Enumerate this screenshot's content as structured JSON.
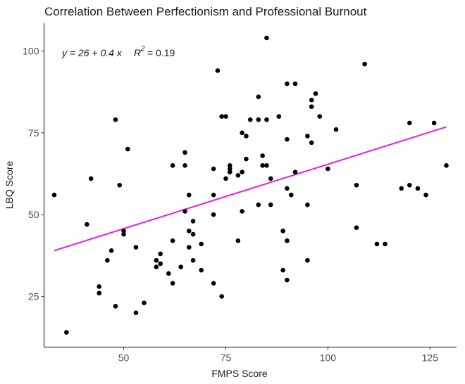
{
  "chart_data": {
    "type": "scatter",
    "title": "Correlation Between Perfectionism and Professional Burnout",
    "xlabel": "FMPS Score",
    "ylabel": "LBQ Score",
    "xlim": [
      30.5,
      131.5
    ],
    "ylim": [
      9.5,
      108.5
    ],
    "xticks": [
      50,
      75,
      100,
      125
    ],
    "yticks": [
      25,
      50,
      75,
      100
    ],
    "grid": false,
    "legend": "none",
    "annotation": {
      "equation": "y = 26 + 0.4 x",
      "r_symbol": "R",
      "r_superscript": "2",
      "r_value": "= 0.19"
    },
    "point_color": "#000000",
    "fit_color": "#e81ee0",
    "fit_line": {
      "x": [
        33,
        129
      ],
      "y": [
        39.0,
        76.8
      ]
    },
    "points": [
      [
        33,
        56
      ],
      [
        36,
        14
      ],
      [
        41,
        47
      ],
      [
        42,
        61
      ],
      [
        44,
        28
      ],
      [
        44,
        26
      ],
      [
        46,
        36
      ],
      [
        47,
        39
      ],
      [
        48,
        79
      ],
      [
        48,
        22
      ],
      [
        49,
        59
      ],
      [
        50,
        45
      ],
      [
        50,
        44
      ],
      [
        51,
        70
      ],
      [
        53,
        40
      ],
      [
        53,
        20
      ],
      [
        55,
        23
      ],
      [
        58,
        36
      ],
      [
        58,
        34
      ],
      [
        59,
        38
      ],
      [
        59,
        35
      ],
      [
        61,
        32
      ],
      [
        62,
        65
      ],
      [
        62,
        42
      ],
      [
        62,
        29
      ],
      [
        64,
        34
      ],
      [
        65,
        69
      ],
      [
        65,
        65
      ],
      [
        65,
        51
      ],
      [
        66,
        56
      ],
      [
        66,
        45
      ],
      [
        66,
        40
      ],
      [
        67,
        48
      ],
      [
        67,
        44
      ],
      [
        67,
        36
      ],
      [
        69,
        41
      ],
      [
        69,
        33
      ],
      [
        72,
        64
      ],
      [
        72,
        56
      ],
      [
        72,
        50
      ],
      [
        72,
        29
      ],
      [
        73,
        94
      ],
      [
        74,
        80
      ],
      [
        74,
        25
      ],
      [
        75,
        80
      ],
      [
        75,
        61
      ],
      [
        76,
        65
      ],
      [
        76,
        64
      ],
      [
        76,
        63
      ],
      [
        78,
        62
      ],
      [
        78,
        42
      ],
      [
        79,
        75
      ],
      [
        79,
        63
      ],
      [
        79,
        51
      ],
      [
        80,
        74
      ],
      [
        80,
        67
      ],
      [
        81,
        79
      ],
      [
        83,
        86
      ],
      [
        83,
        79
      ],
      [
        83,
        53
      ],
      [
        84,
        68
      ],
      [
        84,
        65
      ],
      [
        85,
        104
      ],
      [
        85,
        79
      ],
      [
        85,
        65
      ],
      [
        86,
        61
      ],
      [
        86,
        53
      ],
      [
        88,
        80
      ],
      [
        89,
        45
      ],
      [
        89,
        33
      ],
      [
        90,
        90
      ],
      [
        90,
        73
      ],
      [
        90,
        58
      ],
      [
        90,
        42
      ],
      [
        90,
        30
      ],
      [
        91,
        56
      ],
      [
        92,
        90
      ],
      [
        92,
        63
      ],
      [
        95,
        74
      ],
      [
        95,
        53
      ],
      [
        95,
        36
      ],
      [
        96,
        85
      ],
      [
        96,
        83
      ],
      [
        96,
        72
      ],
      [
        97,
        87
      ],
      [
        98,
        80
      ],
      [
        100,
        64
      ],
      [
        102,
        76
      ],
      [
        107,
        59
      ],
      [
        107,
        46
      ],
      [
        109,
        96
      ],
      [
        112,
        41
      ],
      [
        114,
        41
      ],
      [
        118,
        58
      ],
      [
        120,
        78
      ],
      [
        120,
        59
      ],
      [
        122,
        58
      ],
      [
        124,
        56
      ],
      [
        126,
        78
      ],
      [
        129,
        65
      ]
    ]
  }
}
